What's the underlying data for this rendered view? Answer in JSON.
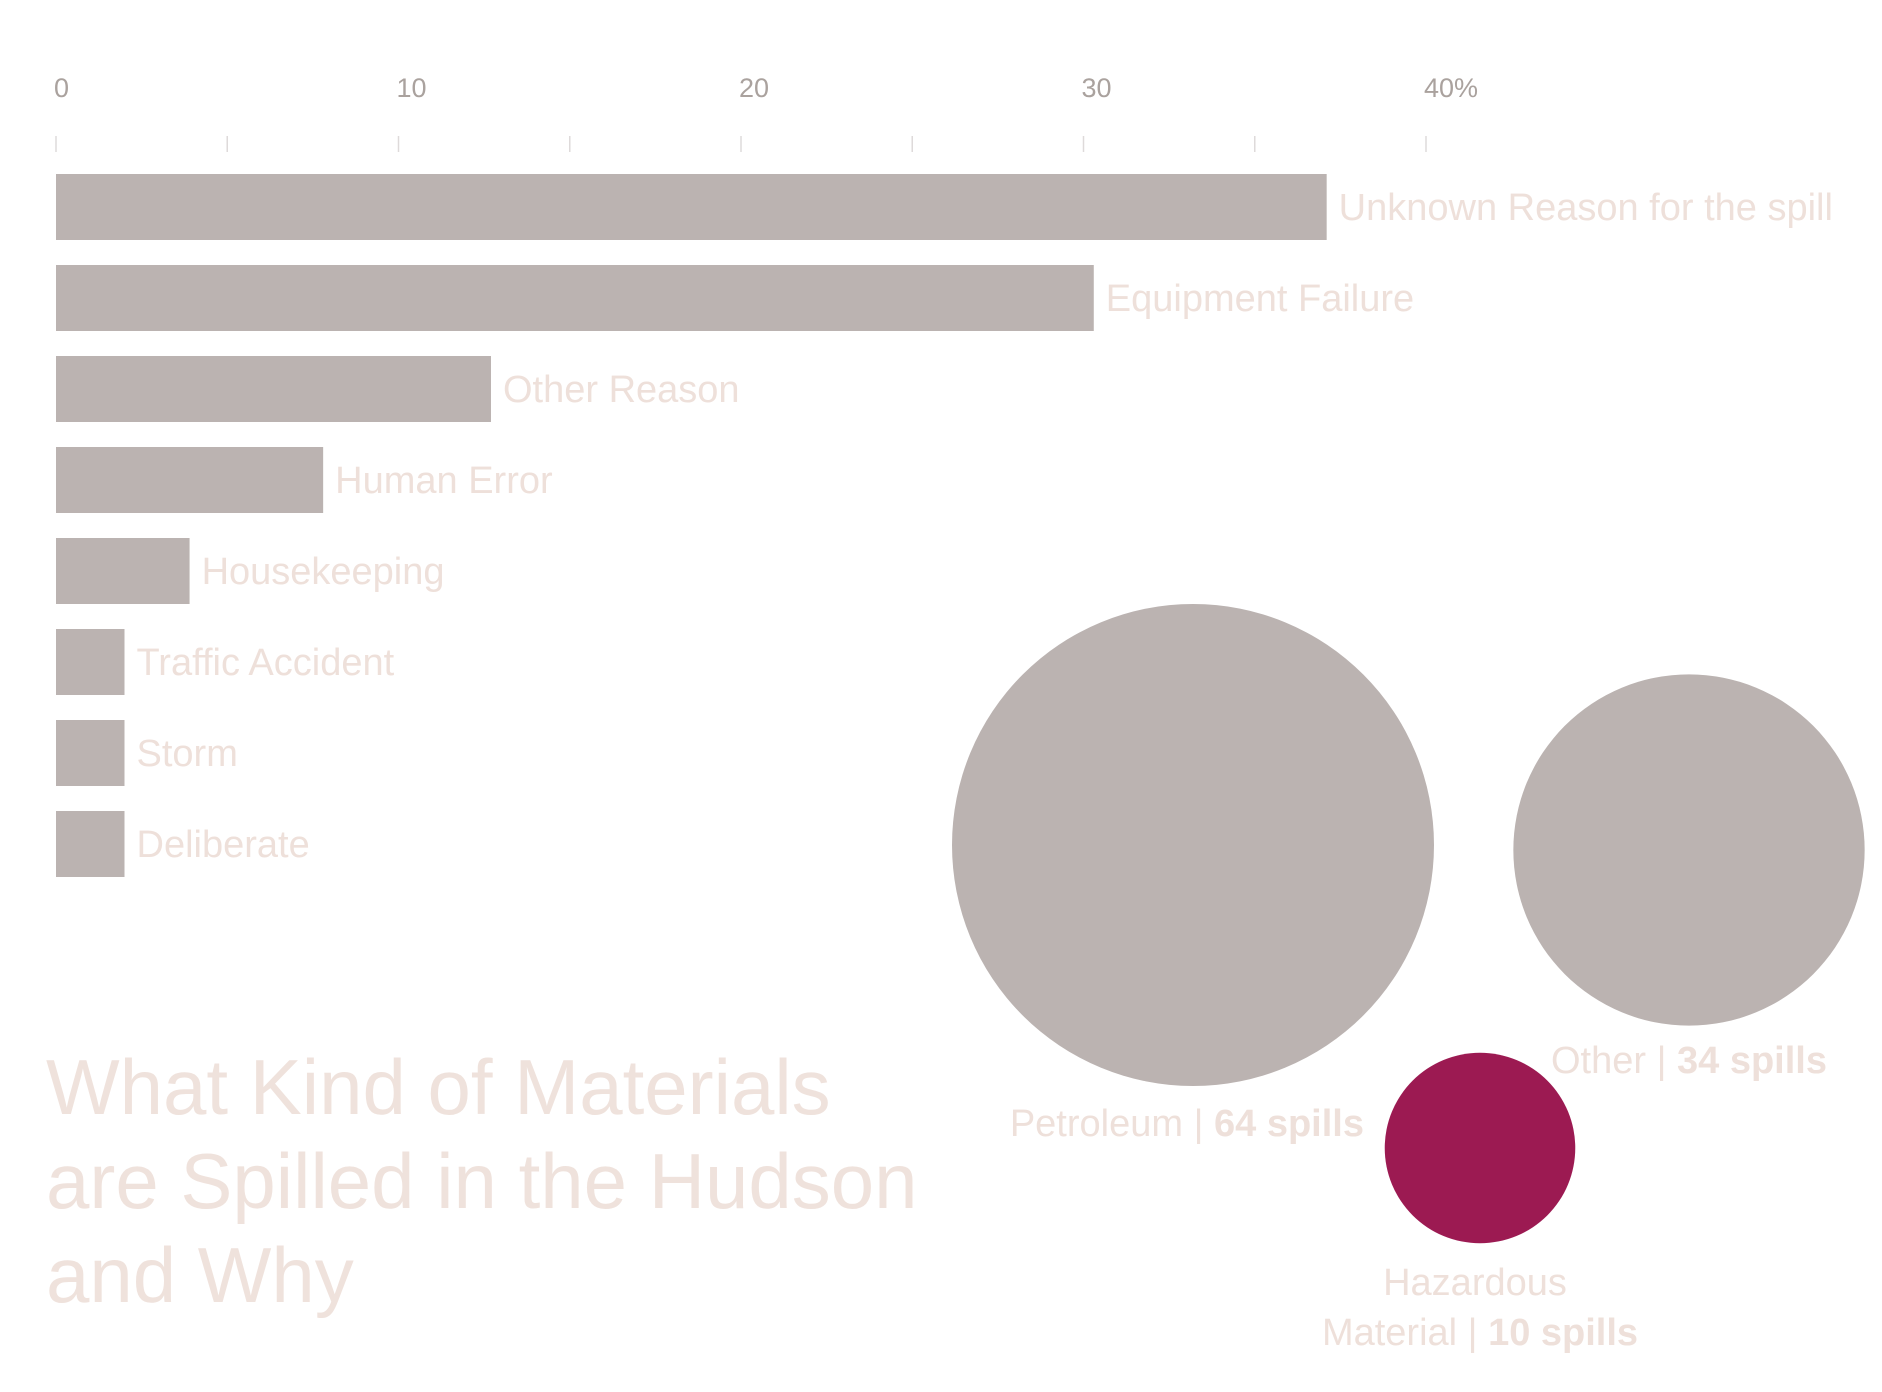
{
  "title_lines": [
    "What Kind of Materials",
    "are Spilled in the Hudson",
    "and Why"
  ],
  "colors": {
    "bar": "#bbb3b1",
    "bubble_default": "#bbb3b1",
    "bubble_highlight": "#9c1a52",
    "label": "#eee0da",
    "tick": "#aaa29e"
  },
  "chart_data": [
    {
      "type": "bar",
      "orientation": "horizontal",
      "axis_ticks": [
        "0",
        "10",
        "20",
        "30",
        "40%"
      ],
      "xlim": [
        0,
        40
      ],
      "categories": [
        "Unknown Reason for the spill",
        "Equipment Failure",
        "Other Reason",
        "Human Error",
        "Housekeeping",
        "Traffic Accident",
        "Storm",
        "Deliberate"
      ],
      "values": [
        37.1,
        30.3,
        12.7,
        7.8,
        3.9,
        2.0,
        2.0,
        2.0
      ],
      "grid": false
    },
    {
      "type": "bubble",
      "items": [
        {
          "name": "Petroleum",
          "value": 64,
          "value_text": "64 spills",
          "highlight": false
        },
        {
          "name": "Other",
          "value": 34,
          "value_text": "34 spills",
          "highlight": false
        },
        {
          "name": "Hazardous Material",
          "name_lines": [
            "Hazardous",
            "Material"
          ],
          "value": 10,
          "value_text": "10 spills",
          "highlight": true
        }
      ]
    }
  ]
}
